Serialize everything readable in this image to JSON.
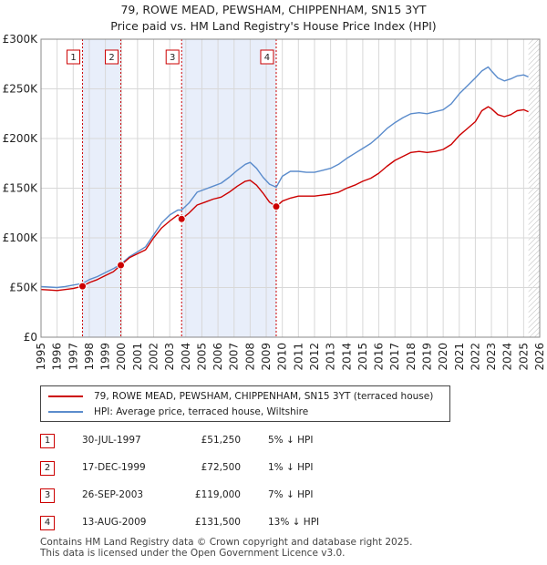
{
  "title_line1": "79, ROWE MEAD, PEWSHAM, CHIPPENHAM, SN15 3YT",
  "title_line2": "Price paid vs. HM Land Registry's House Price Index (HPI)",
  "colors": {
    "price_line": "#cc0000",
    "hpi_line": "#5b8ccc",
    "shade": "#e8eefa",
    "grid": "#d8d8d8",
    "marker": "#cc0000"
  },
  "chart_data": {
    "type": "line",
    "xlim": [
      1995,
      2026
    ],
    "ylim": [
      0,
      300000
    ],
    "y_ticks": [
      0,
      50000,
      100000,
      150000,
      200000,
      250000,
      300000
    ],
    "y_tick_labels": [
      "£0",
      "£50K",
      "£100K",
      "£150K",
      "£200K",
      "£250K",
      "£300K"
    ],
    "x_ticks": [
      1995,
      1996,
      1997,
      1998,
      1999,
      2000,
      2001,
      2002,
      2003,
      2004,
      2005,
      2006,
      2007,
      2008,
      2009,
      2010,
      2011,
      2012,
      2013,
      2014,
      2015,
      2016,
      2017,
      2018,
      2019,
      2020,
      2021,
      2022,
      2023,
      2024,
      2025,
      2026
    ],
    "x_tick_labels": [
      "1995",
      "1996",
      "1997",
      "1998",
      "1999",
      "2000",
      "2001",
      "2002",
      "2003",
      "2004",
      "2005",
      "2006",
      "2007",
      "2008",
      "2009",
      "2010",
      "2011",
      "2012",
      "2013",
      "2014",
      "2015",
      "2016",
      "2017",
      "2018",
      "2019",
      "2020",
      "2021",
      "2022",
      "2023",
      "2024",
      "2025",
      "2026"
    ],
    "shaded_ranges": [
      [
        1997.58,
        1999.96
      ],
      [
        2003.74,
        2009.62
      ]
    ],
    "future_hatch_from": 2025.3,
    "series": [
      {
        "name": "79, ROWE MEAD, PEWSHAM, CHIPPENHAM, SN15 3YT (terraced house)",
        "points": [
          [
            1995.0,
            48000
          ],
          [
            1995.5,
            47500
          ],
          [
            1996.0,
            47000
          ],
          [
            1996.5,
            48000
          ],
          [
            1997.0,
            49000
          ],
          [
            1997.58,
            51250
          ],
          [
            1998.0,
            55000
          ],
          [
            1998.5,
            58000
          ],
          [
            1999.0,
            62000
          ],
          [
            1999.5,
            66000
          ],
          [
            1999.96,
            72500
          ],
          [
            2000.5,
            80000
          ],
          [
            2001.0,
            84000
          ],
          [
            2001.5,
            88000
          ],
          [
            2002.0,
            100000
          ],
          [
            2002.5,
            110000
          ],
          [
            2003.0,
            117000
          ],
          [
            2003.5,
            123000
          ],
          [
            2003.74,
            119000
          ],
          [
            2004.2,
            125000
          ],
          [
            2004.7,
            133000
          ],
          [
            2005.2,
            136000
          ],
          [
            2005.7,
            139000
          ],
          [
            2006.2,
            141000
          ],
          [
            2006.7,
            146000
          ],
          [
            2007.2,
            152000
          ],
          [
            2007.7,
            157000
          ],
          [
            2008.0,
            158000
          ],
          [
            2008.4,
            153000
          ],
          [
            2008.8,
            145000
          ],
          [
            2009.2,
            136000
          ],
          [
            2009.62,
            131500
          ],
          [
            2010.0,
            137000
          ],
          [
            2010.5,
            140000
          ],
          [
            2011.0,
            142000
          ],
          [
            2011.5,
            142000
          ],
          [
            2012.0,
            142000
          ],
          [
            2012.5,
            143000
          ],
          [
            2013.0,
            144000
          ],
          [
            2013.5,
            146000
          ],
          [
            2014.0,
            150000
          ],
          [
            2014.5,
            153000
          ],
          [
            2015.0,
            157000
          ],
          [
            2015.5,
            160000
          ],
          [
            2016.0,
            165000
          ],
          [
            2016.5,
            172000
          ],
          [
            2017.0,
            178000
          ],
          [
            2017.5,
            182000
          ],
          [
            2018.0,
            186000
          ],
          [
            2018.5,
            187000
          ],
          [
            2019.0,
            186000
          ],
          [
            2019.5,
            187000
          ],
          [
            2020.0,
            189000
          ],
          [
            2020.5,
            194000
          ],
          [
            2021.0,
            203000
          ],
          [
            2021.5,
            210000
          ],
          [
            2022.0,
            217000
          ],
          [
            2022.4,
            228000
          ],
          [
            2022.8,
            232000
          ],
          [
            2023.0,
            230000
          ],
          [
            2023.4,
            224000
          ],
          [
            2023.8,
            222000
          ],
          [
            2024.2,
            224000
          ],
          [
            2024.6,
            228000
          ],
          [
            2025.0,
            229000
          ],
          [
            2025.3,
            227000
          ]
        ]
      },
      {
        "name": "HPI: Average price, terraced house, Wiltshire",
        "points": [
          [
            1995.0,
            51000
          ],
          [
            1995.5,
            50500
          ],
          [
            1996.0,
            50000
          ],
          [
            1996.5,
            51000
          ],
          [
            1997.0,
            52500
          ],
          [
            1997.58,
            54000
          ],
          [
            1998.0,
            58000
          ],
          [
            1998.5,
            61000
          ],
          [
            1999.0,
            65000
          ],
          [
            1999.5,
            69000
          ],
          [
            1999.96,
            73500
          ],
          [
            2000.5,
            81000
          ],
          [
            2001.0,
            86000
          ],
          [
            2001.5,
            91000
          ],
          [
            2002.0,
            103000
          ],
          [
            2002.5,
            115000
          ],
          [
            2003.0,
            123000
          ],
          [
            2003.5,
            128000
          ],
          [
            2003.74,
            128000
          ],
          [
            2004.2,
            135000
          ],
          [
            2004.7,
            146000
          ],
          [
            2005.2,
            149000
          ],
          [
            2005.7,
            152000
          ],
          [
            2006.2,
            155000
          ],
          [
            2006.7,
            161000
          ],
          [
            2007.2,
            168000
          ],
          [
            2007.7,
            174000
          ],
          [
            2008.0,
            176000
          ],
          [
            2008.4,
            170000
          ],
          [
            2008.8,
            161000
          ],
          [
            2009.2,
            154000
          ],
          [
            2009.62,
            151000
          ],
          [
            2010.0,
            162000
          ],
          [
            2010.5,
            167000
          ],
          [
            2011.0,
            167000
          ],
          [
            2011.5,
            166000
          ],
          [
            2012.0,
            166000
          ],
          [
            2012.5,
            168000
          ],
          [
            2013.0,
            170000
          ],
          [
            2013.5,
            174000
          ],
          [
            2014.0,
            180000
          ],
          [
            2014.5,
            185000
          ],
          [
            2015.0,
            190000
          ],
          [
            2015.5,
            195000
          ],
          [
            2016.0,
            202000
          ],
          [
            2016.5,
            210000
          ],
          [
            2017.0,
            216000
          ],
          [
            2017.5,
            221000
          ],
          [
            2018.0,
            225000
          ],
          [
            2018.5,
            226000
          ],
          [
            2019.0,
            225000
          ],
          [
            2019.5,
            227000
          ],
          [
            2020.0,
            229000
          ],
          [
            2020.5,
            235000
          ],
          [
            2021.0,
            245000
          ],
          [
            2021.5,
            253000
          ],
          [
            2022.0,
            261000
          ],
          [
            2022.4,
            268000
          ],
          [
            2022.8,
            272000
          ],
          [
            2023.0,
            268000
          ],
          [
            2023.4,
            261000
          ],
          [
            2023.8,
            258000
          ],
          [
            2024.2,
            260000
          ],
          [
            2024.6,
            263000
          ],
          [
            2025.0,
            264000
          ],
          [
            2025.3,
            262000
          ]
        ]
      }
    ],
    "sales": [
      {
        "label": "1",
        "x": 1997.58,
        "y": 51250
      },
      {
        "label": "2",
        "x": 1999.96,
        "y": 72500
      },
      {
        "label": "3",
        "x": 2003.74,
        "y": 119000
      },
      {
        "label": "4",
        "x": 2009.62,
        "y": 131500
      }
    ]
  },
  "legend": {
    "price_label": "79, ROWE MEAD, PEWSHAM, CHIPPENHAM, SN15 3YT (terraced house)",
    "hpi_label": "HPI: Average price, terraced house, Wiltshire"
  },
  "sales_table": [
    {
      "num": "1",
      "date": "30-JUL-1997",
      "price": "£51,250",
      "hpi": "5% ↓ HPI"
    },
    {
      "num": "2",
      "date": "17-DEC-1999",
      "price": "£72,500",
      "hpi": "1% ↓ HPI"
    },
    {
      "num": "3",
      "date": "26-SEP-2003",
      "price": "£119,000",
      "hpi": "7% ↓ HPI"
    },
    {
      "num": "4",
      "date": "13-AUG-2009",
      "price": "£131,500",
      "hpi": "13% ↓ HPI"
    }
  ],
  "footer_line1": "Contains HM Land Registry data © Crown copyright and database right 2025.",
  "footer_line2": "This data is licensed under the Open Government Licence v3.0."
}
